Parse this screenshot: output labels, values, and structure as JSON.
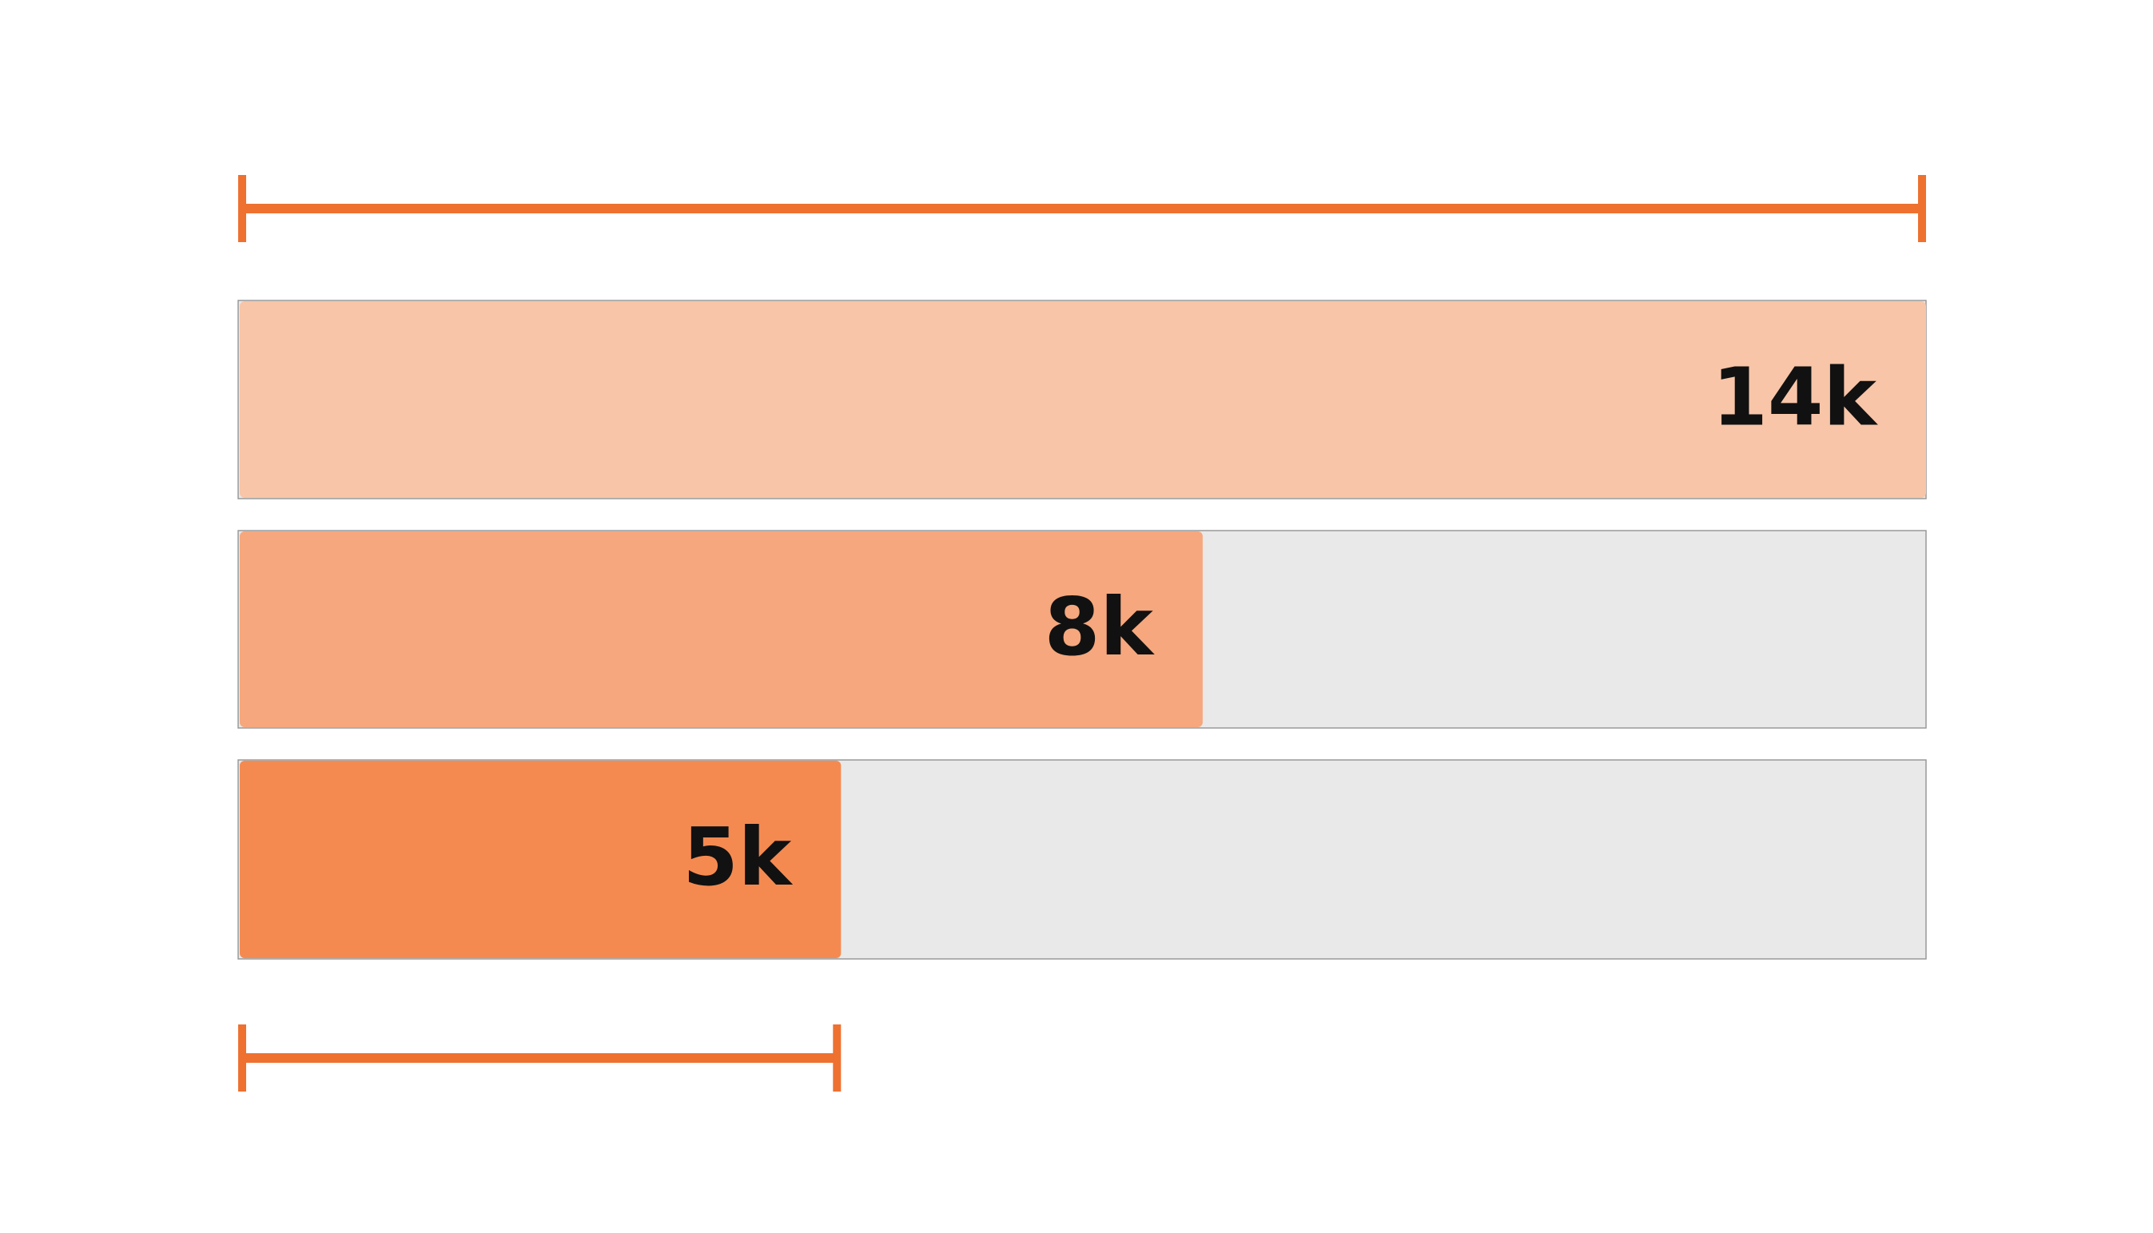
{
  "chart_data": {
    "type": "bar",
    "orientation": "horizontal",
    "values": [
      14000,
      8000,
      5000
    ],
    "value_labels": [
      "14k",
      "8k",
      "5k"
    ],
    "colors": [
      "#f8c5a8",
      "#f6a77d",
      "#f58a51"
    ],
    "track_color": "#e8e9e8",
    "bracket_color": "#ee7130",
    "xlim": [
      0,
      14000
    ]
  }
}
